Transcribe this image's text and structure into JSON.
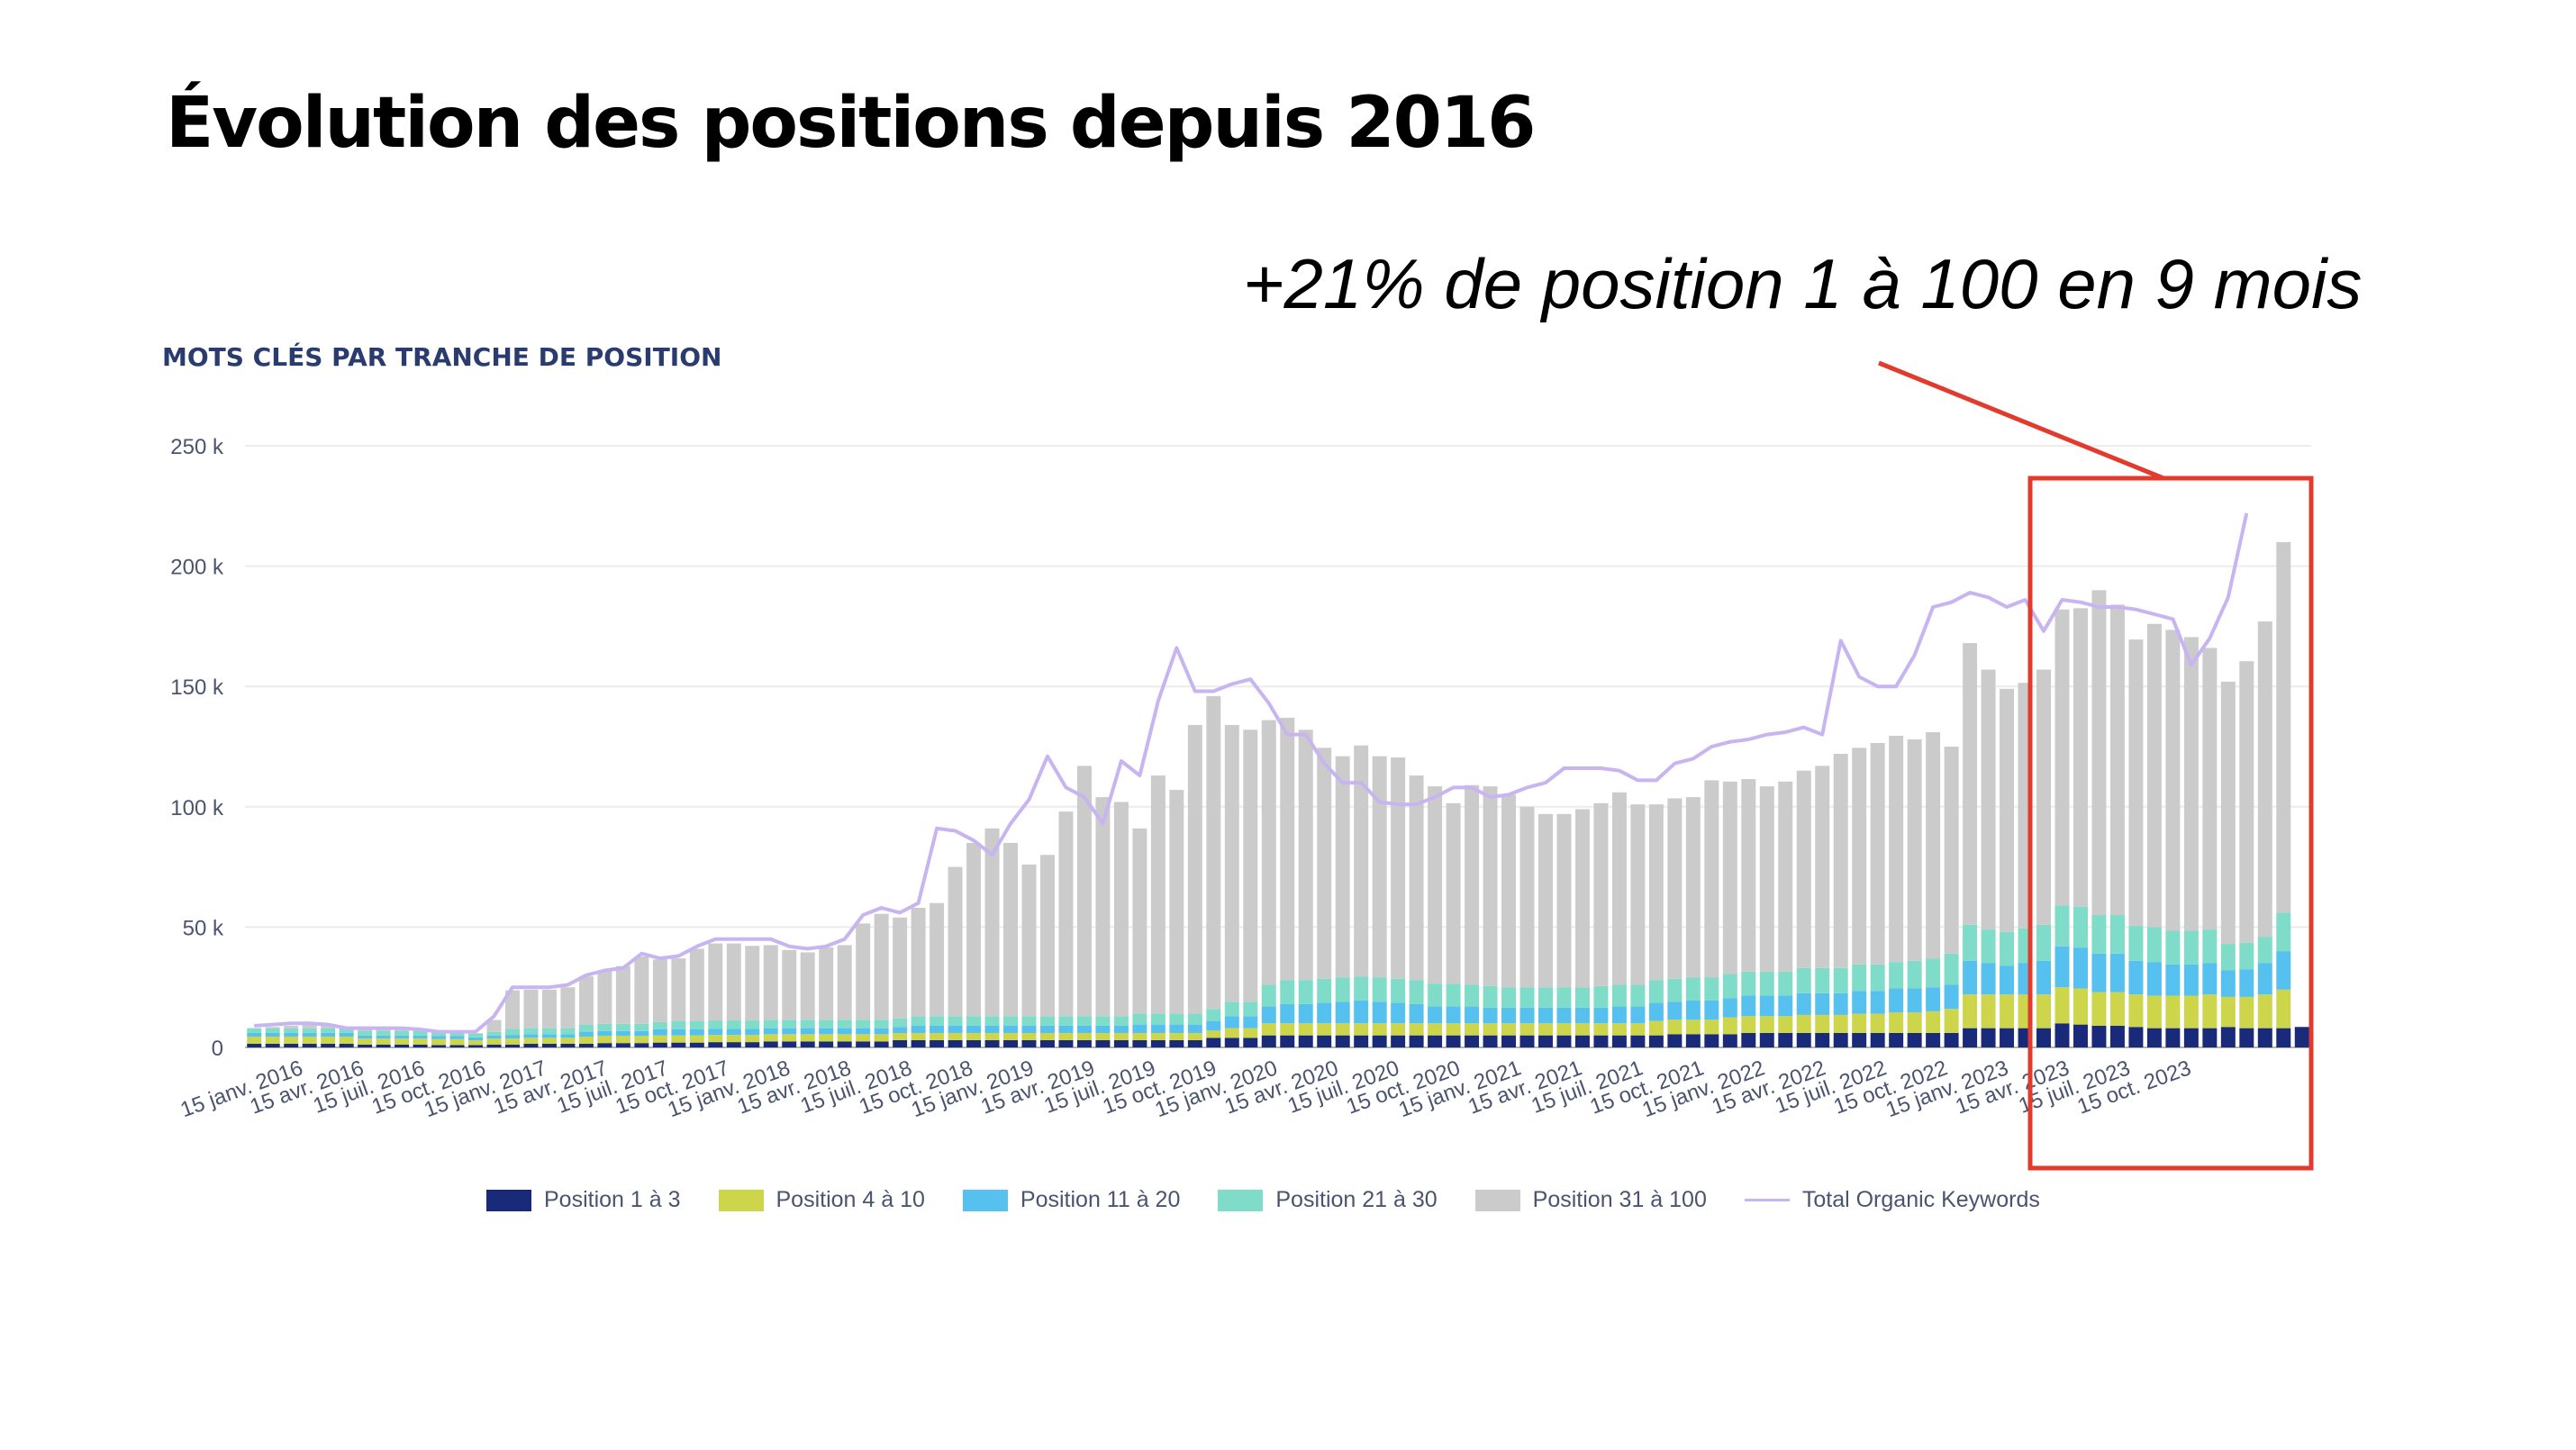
{
  "title": "Évolution des positions depuis 2016",
  "annotation": "+21% de position 1 à 100 en 9 mois",
  "colors": {
    "p1_3": "#1a2a7a",
    "p4_10": "#cdd54a",
    "p11_20": "#56c0ee",
    "p21_30": "#7fdcc8",
    "p31_100": "#cbcbcb",
    "total": "#c8b4f0",
    "highlight": "#e23b2e"
  },
  "chart_data": {
    "type": "bar",
    "title": "MOTS CLÉS PAR TRANCHE DE POSITION",
    "ylim": [
      0,
      250000
    ],
    "yticks": [
      "0",
      "50 k",
      "100 k",
      "150 k",
      "200 k",
      "250 k"
    ],
    "grid": true,
    "legend_position": "bottom",
    "xtick_labels": [
      "15 janv. 2016",
      "15 avr. 2016",
      "15 juil. 2016",
      "15 oct. 2016",
      "15 janv. 2017",
      "15 avr. 2017",
      "15 juil. 2017",
      "15 oct. 2017",
      "15 janv. 2018",
      "15 avr. 2018",
      "15 juil. 2018",
      "15 oct. 2018",
      "15 janv. 2019",
      "15 avr. 2019",
      "15 juil. 2019",
      "15 oct. 2019",
      "15 janv. 2020",
      "15 avr. 2020",
      "15 juil. 2020",
      "15 oct. 2020",
      "15 janv. 2021",
      "15 avr. 2021",
      "15 juil. 2021",
      "15 oct. 2021",
      "15 janv. 2022",
      "15 avr. 2022",
      "15 juil. 2022",
      "15 oct. 2022",
      "15 janv. 2023",
      "15 avr. 2023",
      "15 juil. 2023",
      "15 oct. 2023"
    ],
    "highlight_range": [
      "15 janv. 2023",
      "15 déc. 2023"
    ],
    "series": [
      {
        "name": "Position 1 à 3",
        "values": [
          1500,
          1500,
          1500,
          1500,
          1500,
          1500,
          1200,
          1200,
          1200,
          1200,
          1000,
          1000,
          1000,
          1200,
          1200,
          1500,
          1500,
          1500,
          1500,
          1800,
          1800,
          1800,
          2000,
          2000,
          2000,
          2200,
          2200,
          2200,
          2500,
          2500,
          2500,
          2500,
          2500,
          2500,
          2500,
          3000,
          3000,
          3000,
          3000,
          3000,
          3000,
          3000,
          3000,
          3000,
          3000,
          3000,
          3000,
          3000,
          3000,
          3000,
          3000,
          3000,
          4000,
          4000,
          4000,
          5000,
          5000,
          5000,
          5000,
          5000,
          5000,
          5000,
          5000,
          5000,
          5000,
          5000,
          5000,
          5000,
          5000,
          5000,
          5000,
          5000,
          5000,
          5000,
          5000,
          5000,
          5000,
          5500,
          5500,
          5500,
          5500,
          6000,
          6000,
          6000,
          6000,
          6000,
          6000,
          6000,
          6000,
          6000,
          6000,
          6000,
          6000,
          8000,
          8000,
          8000,
          8000,
          8000,
          10000,
          9500,
          9000,
          9000,
          8500,
          8000,
          8000,
          8000,
          8000,
          8500,
          8000,
          8000,
          8000,
          8500
        ]
      },
      {
        "name": "Position 4 à 10",
        "values": [
          3000,
          3000,
          3000,
          3000,
          3000,
          3000,
          2500,
          2500,
          2500,
          2500,
          2500,
          2500,
          2000,
          2500,
          2500,
          2500,
          2500,
          2500,
          3000,
          3000,
          3000,
          3000,
          3000,
          3000,
          3000,
          3000,
          3000,
          3000,
          3000,
          3000,
          3000,
          3000,
          3000,
          3000,
          3000,
          3000,
          3000,
          3000,
          3000,
          3000,
          3000,
          3000,
          3000,
          3000,
          3000,
          3000,
          3000,
          3000,
          3000,
          3000,
          3000,
          3000,
          3000,
          4000,
          4000,
          5000,
          5000,
          5000,
          5000,
          5000,
          5000,
          5000,
          5000,
          5000,
          5000,
          5000,
          5000,
          5000,
          5000,
          5000,
          5000,
          5000,
          5000,
          5000,
          5000,
          5000,
          6000,
          6000,
          6000,
          6000,
          7000,
          7000,
          7000,
          7000,
          7500,
          7500,
          7500,
          8000,
          8000,
          8500,
          8500,
          9000,
          10000,
          14000,
          14000,
          14000,
          14000,
          14000,
          15000,
          15000,
          14000,
          14000,
          13500,
          13500,
          13500,
          13500,
          14000,
          12500,
          13000,
          14000,
          16000
        ]
      },
      {
        "name": "Position 11 à 20",
        "values": [
          1500,
          1500,
          1500,
          1500,
          1500,
          1500,
          1200,
          1200,
          1200,
          1200,
          1200,
          1200,
          1200,
          1200,
          1500,
          1500,
          1500,
          1500,
          2000,
          2000,
          2000,
          2000,
          2500,
          2500,
          2500,
          2500,
          2500,
          2500,
          2500,
          2500,
          2500,
          2500,
          2500,
          2500,
          2500,
          2500,
          3000,
          3000,
          3000,
          3000,
          3000,
          3000,
          3000,
          3000,
          3000,
          3000,
          3000,
          3000,
          3500,
          3500,
          3500,
          3500,
          4000,
          5000,
          5000,
          7000,
          8000,
          8000,
          8500,
          9000,
          9500,
          9000,
          8500,
          8000,
          7000,
          7000,
          7000,
          6500,
          6500,
          6500,
          6500,
          6500,
          6500,
          6500,
          7000,
          7000,
          7500,
          7500,
          8000,
          8000,
          8000,
          8500,
          8500,
          8500,
          9000,
          9000,
          9000,
          9500,
          9500,
          10000,
          10000,
          10000,
          10000,
          14000,
          13000,
          12000,
          13000,
          14000,
          17000,
          17000,
          16000,
          16000,
          14000,
          14000,
          13000,
          13000,
          13000,
          11000,
          11500,
          13000,
          16000
        ]
      },
      {
        "name": "Position 21 à 30",
        "values": [
          2000,
          2000,
          2000,
          2000,
          2000,
          2000,
          2000,
          2000,
          2000,
          2000,
          1500,
          1500,
          1500,
          1500,
          2500,
          2500,
          2500,
          2500,
          3000,
          3000,
          3000,
          3000,
          3000,
          3500,
          3500,
          3500,
          3500,
          3500,
          3500,
          3500,
          3500,
          3500,
          3500,
          3500,
          3500,
          3500,
          4000,
          4000,
          4000,
          4000,
          4000,
          4000,
          4000,
          4000,
          4000,
          4000,
          4000,
          4000,
          4500,
          4500,
          4500,
          4500,
          5000,
          6000,
          6000,
          9000,
          10000,
          10000,
          10000,
          10000,
          10000,
          10000,
          10000,
          10000,
          9500,
          9500,
          9000,
          9000,
          8500,
          8500,
          8500,
          8500,
          8500,
          9000,
          9000,
          9000,
          9500,
          9500,
          9500,
          9500,
          10000,
          10000,
          10000,
          10000,
          10500,
          10500,
          10500,
          11000,
          11000,
          11000,
          11500,
          12000,
          13000,
          15000,
          14000,
          14000,
          14500,
          15000,
          17000,
          17000,
          16000,
          16000,
          14500,
          14500,
          14000,
          14000,
          14000,
          11000,
          11000,
          11000,
          16000
        ]
      },
      {
        "name": "Position 31 à 100",
        "values": [
          0,
          500,
          1000,
          1500,
          1000,
          500,
          500,
          500,
          500,
          500,
          300,
          300,
          300,
          5000,
          16000,
          16000,
          16000,
          17000,
          20000,
          22000,
          24000,
          28000,
          26000,
          26000,
          30000,
          32000,
          32000,
          31000,
          31000,
          29000,
          28000,
          30000,
          31000,
          40000,
          44000,
          42000,
          45000,
          47000,
          62000,
          72000,
          78000,
          72000,
          63000,
          67000,
          85000,
          104000,
          91000,
          89000,
          77000,
          99000,
          93000,
          120000,
          130000,
          115000,
          113000,
          110000,
          109000,
          104000,
          96000,
          92000,
          96000,
          92000,
          92000,
          85000,
          82000,
          75000,
          83000,
          83000,
          80000,
          75000,
          72000,
          72000,
          74000,
          76000,
          80000,
          75000,
          73000,
          75000,
          75000,
          82000,
          80000,
          80000,
          77000,
          79000,
          82000,
          84000,
          89000,
          90000,
          92000,
          94000,
          92000,
          94000,
          86000,
          117000,
          108000,
          101000,
          102000,
          106000,
          123000,
          124000,
          135000,
          129000,
          119000,
          126000,
          125000,
          122000,
          117000,
          109000,
          117000,
          131000,
          154000
        ]
      },
      {
        "name": "Total Organic Keywords",
        "line": true,
        "values": [
          9000,
          9500,
          10000,
          10000,
          9500,
          8000,
          8000,
          8000,
          8000,
          7500,
          6500,
          6500,
          6500,
          13000,
          25000,
          25000,
          25000,
          26000,
          30000,
          32000,
          33000,
          39000,
          37000,
          38000,
          42000,
          45000,
          45000,
          45000,
          45000,
          42000,
          41000,
          42000,
          45000,
          55000,
          58000,
          56000,
          60000,
          91000,
          90000,
          86000,
          80000,
          93000,
          103000,
          121000,
          108000,
          104000,
          93000,
          119000,
          113000,
          144000,
          166000,
          148000,
          148000,
          151000,
          153000,
          143000,
          130000,
          130000,
          118000,
          110000,
          110000,
          102000,
          101000,
          101000,
          104000,
          108000,
          108000,
          104000,
          105000,
          108000,
          110000,
          116000,
          116000,
          116000,
          115000,
          111000,
          111000,
          118000,
          120000,
          125000,
          127000,
          128000,
          130000,
          131000,
          133000,
          130000,
          169000,
          154000,
          150000,
          150000,
          163000,
          183000,
          185000,
          189000,
          187000,
          183000,
          186000,
          173000,
          186000,
          185000,
          183000,
          183000,
          182000,
          180000,
          178000,
          159000,
          170000,
          187000,
          222000
        ]
      }
    ]
  }
}
